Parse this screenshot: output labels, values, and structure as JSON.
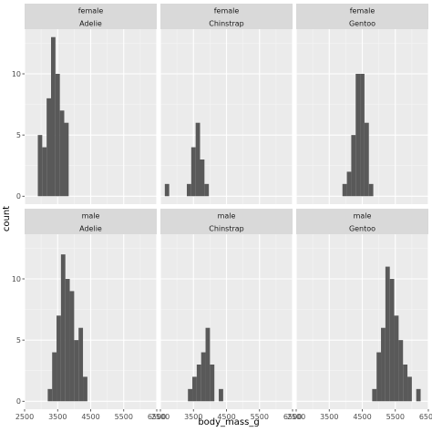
{
  "chart_data": {
    "type": "bar",
    "xlabel": "body_mass_g",
    "ylabel": "count",
    "xlim": [
      2500,
      6500
    ],
    "ylim": [
      -0.65,
      13.65
    ],
    "x_ticks": [
      2500,
      3500,
      4500,
      5500,
      6500
    ],
    "y_ticks": [
      0,
      5,
      10
    ],
    "bin_width": 133.33,
    "grid": true,
    "colors": {
      "bar": "#595959",
      "panel": "#ebebeb",
      "strip": "#d9d9d9",
      "grid_major": "#ffffff",
      "grid_minor": "#f5f5f5"
    },
    "facet_rows": [
      "female",
      "male"
    ],
    "facet_cols": [
      "Adelie",
      "Chinstrap",
      "Gentoo"
    ],
    "panels": [
      {
        "row": "female",
        "col": "Adelie",
        "bins": [
          {
            "x": 2833.3,
            "count": 0
          },
          {
            "x": 2966.7,
            "count": 5
          },
          {
            "x": 3100.0,
            "count": 4
          },
          {
            "x": 3233.3,
            "count": 8
          },
          {
            "x": 3366.7,
            "count": 13
          },
          {
            "x": 3500.0,
            "count": 10
          },
          {
            "x": 3633.3,
            "count": 7
          },
          {
            "x": 3766.7,
            "count": 6
          },
          {
            "x": 3900.0,
            "count": 0
          }
        ]
      },
      {
        "row": "female",
        "col": "Chinstrap",
        "bins": [
          {
            "x": 2700.0,
            "count": 1
          },
          {
            "x": 2833.3,
            "count": 0
          },
          {
            "x": 2966.7,
            "count": 0
          },
          {
            "x": 3100.0,
            "count": 0
          },
          {
            "x": 3233.3,
            "count": 0
          },
          {
            "x": 3366.7,
            "count": 1
          },
          {
            "x": 3500.0,
            "count": 4
          },
          {
            "x": 3633.3,
            "count": 6
          },
          {
            "x": 3766.7,
            "count": 3
          },
          {
            "x": 3900.0,
            "count": 1
          }
        ]
      },
      {
        "row": "female",
        "col": "Gentoo",
        "bins": [
          {
            "x": 3966.7,
            "count": 1
          },
          {
            "x": 4100.0,
            "count": 2
          },
          {
            "x": 4233.3,
            "count": 5
          },
          {
            "x": 4366.7,
            "count": 10
          },
          {
            "x": 4500.0,
            "count": 10
          },
          {
            "x": 4633.3,
            "count": 6
          },
          {
            "x": 4766.7,
            "count": 1
          }
        ]
      },
      {
        "row": "male",
        "col": "Adelie",
        "bins": [
          {
            "x": 3266.7,
            "count": 1
          },
          {
            "x": 3400.0,
            "count": 4
          },
          {
            "x": 3533.3,
            "count": 7
          },
          {
            "x": 3666.7,
            "count": 12
          },
          {
            "x": 3800.0,
            "count": 10
          },
          {
            "x": 3933.3,
            "count": 9
          },
          {
            "x": 4066.7,
            "count": 5
          },
          {
            "x": 4200.0,
            "count": 6
          },
          {
            "x": 4333.3,
            "count": 2
          }
        ]
      },
      {
        "row": "male",
        "col": "Chinstrap",
        "bins": [
          {
            "x": 3400.0,
            "count": 1
          },
          {
            "x": 3533.3,
            "count": 2
          },
          {
            "x": 3666.7,
            "count": 3
          },
          {
            "x": 3800.0,
            "count": 4
          },
          {
            "x": 3933.3,
            "count": 6
          },
          {
            "x": 4066.7,
            "count": 3
          },
          {
            "x": 4200.0,
            "count": 0
          },
          {
            "x": 4333.3,
            "count": 1
          }
        ]
      },
      {
        "row": "male",
        "col": "Gentoo",
        "bins": [
          {
            "x": 4866.7,
            "count": 1
          },
          {
            "x": 5000.0,
            "count": 4
          },
          {
            "x": 5133.3,
            "count": 6
          },
          {
            "x": 5266.7,
            "count": 11
          },
          {
            "x": 5400.0,
            "count": 10
          },
          {
            "x": 5533.3,
            "count": 7
          },
          {
            "x": 5666.7,
            "count": 5
          },
          {
            "x": 5800.0,
            "count": 3
          },
          {
            "x": 5933.3,
            "count": 2
          },
          {
            "x": 6066.7,
            "count": 0
          },
          {
            "x": 6200.0,
            "count": 1
          }
        ]
      }
    ]
  }
}
